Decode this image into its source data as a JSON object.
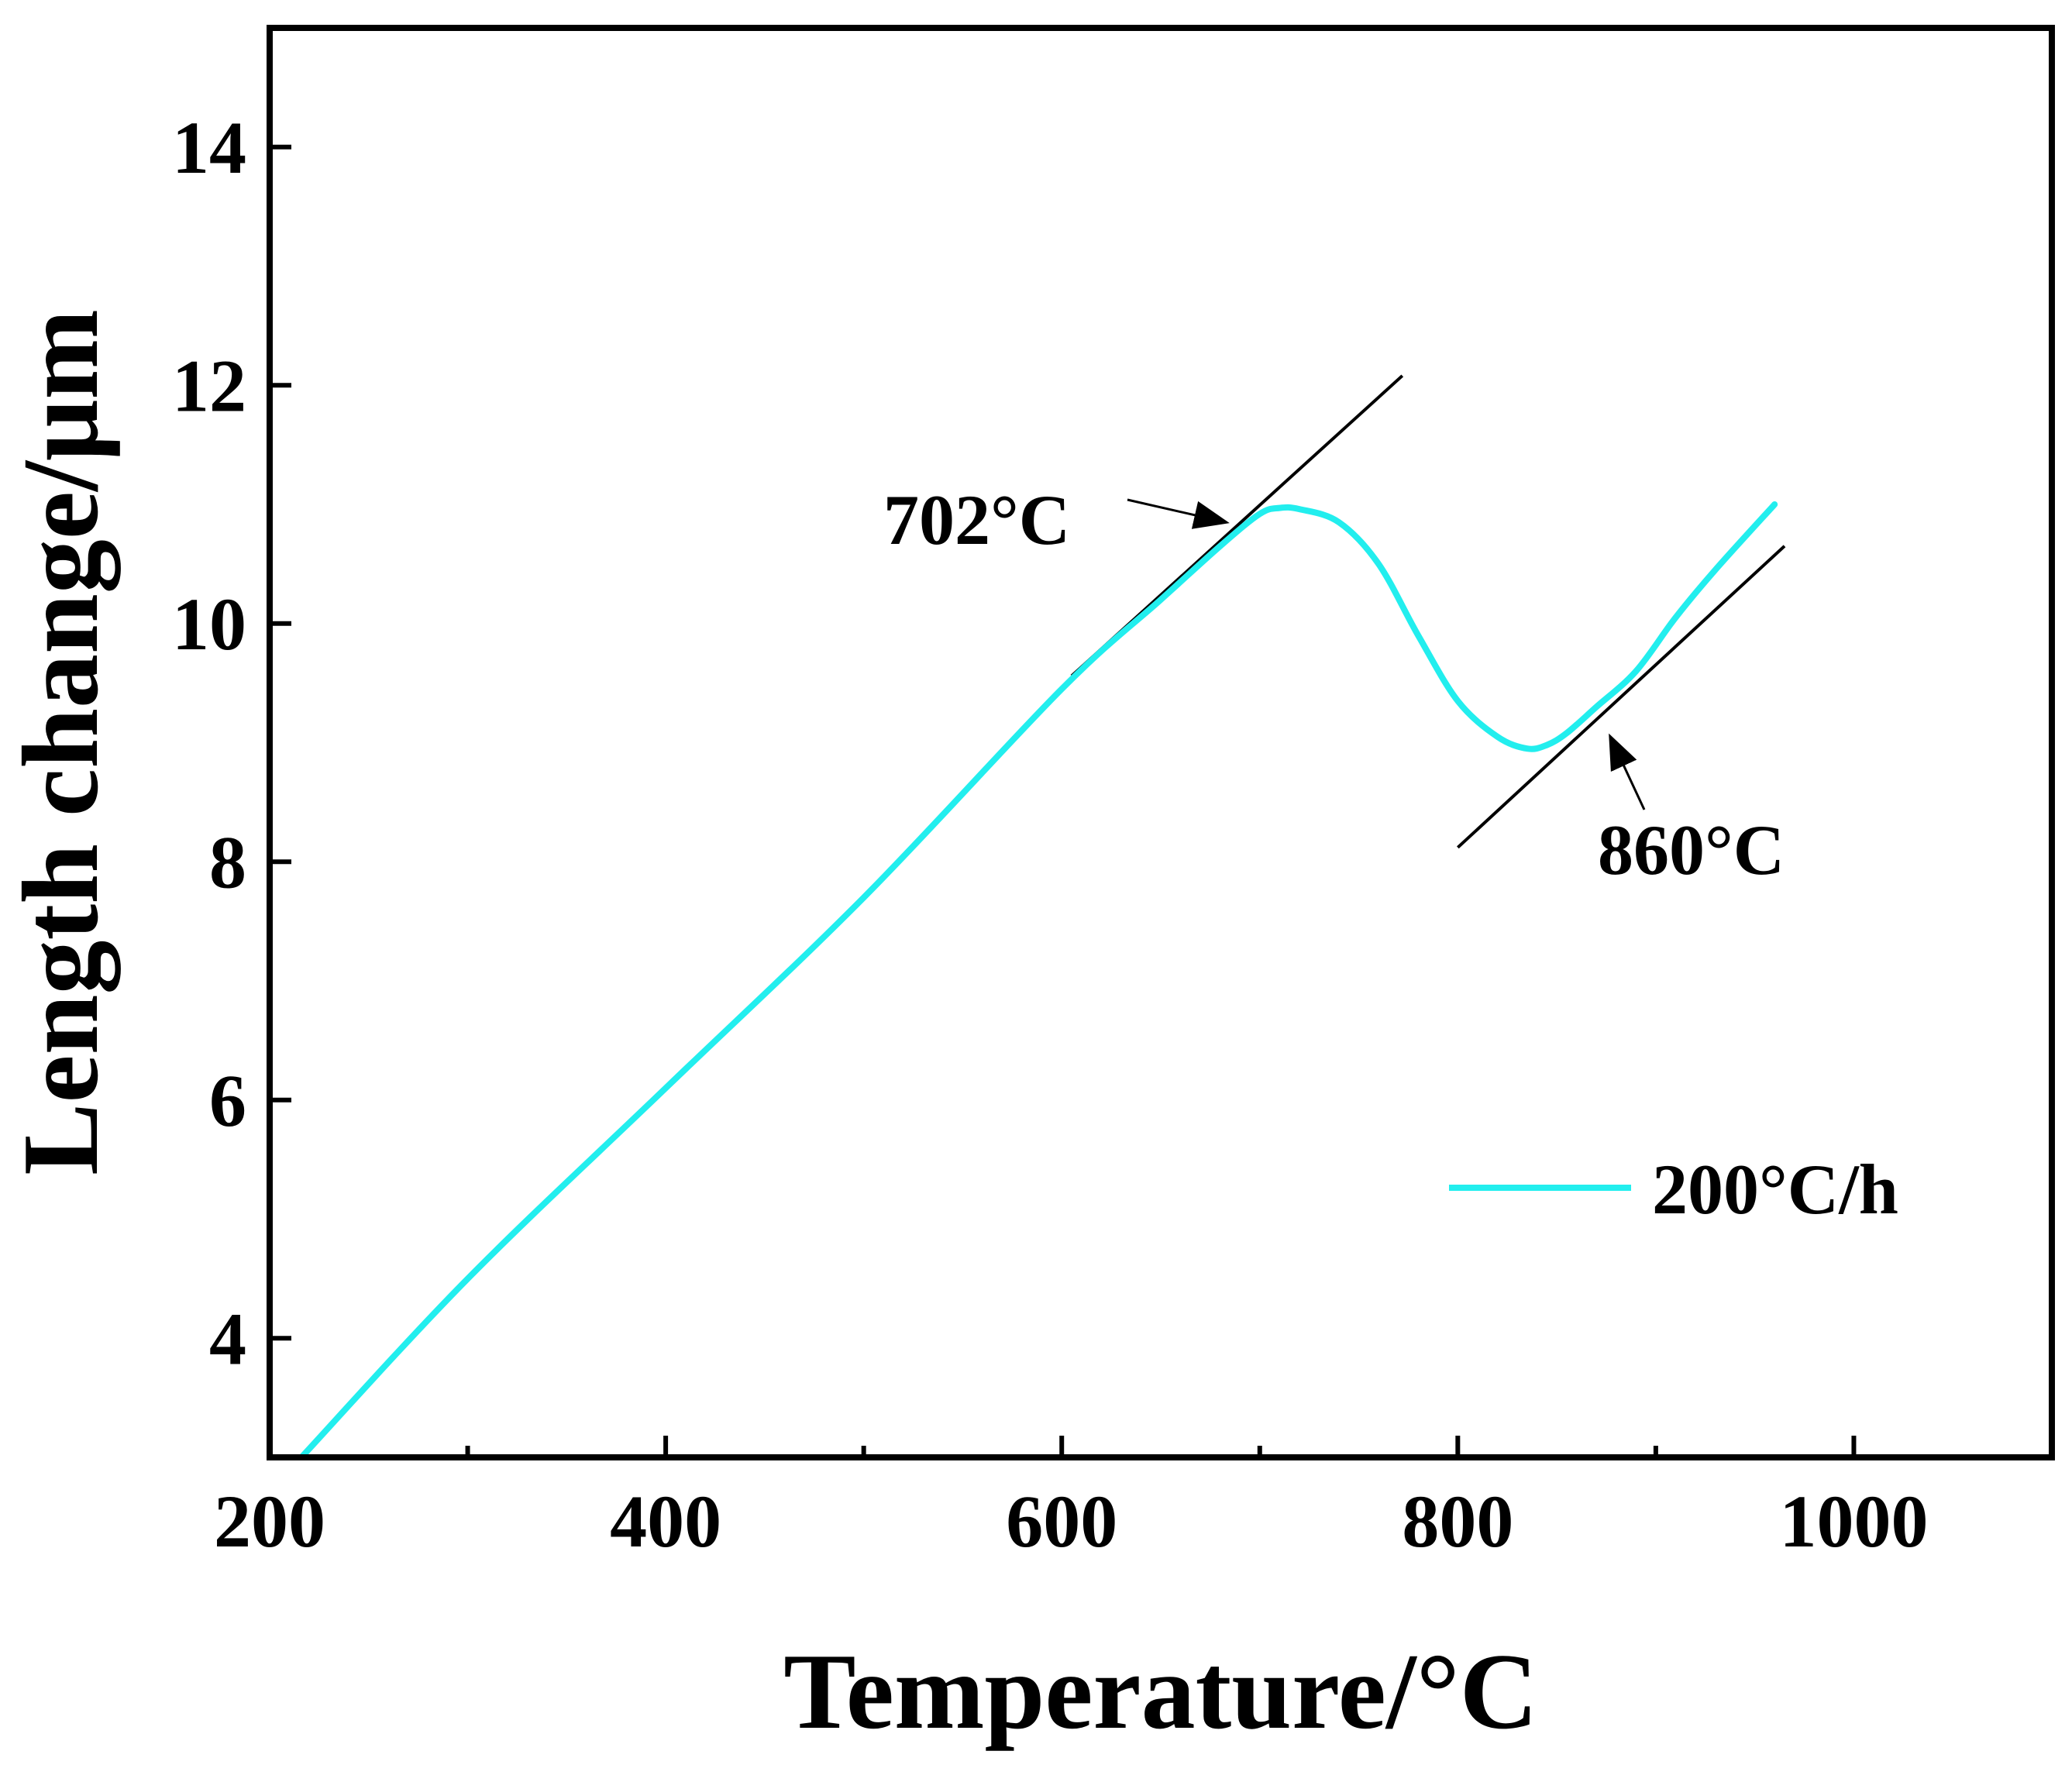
{
  "chart_data": {
    "type": "line",
    "title": "",
    "xlabel": "Temperature/°C",
    "ylabel": "Length change/μm",
    "xlim": [
      200,
      1100
    ],
    "ylim": [
      3,
      15
    ],
    "xticks": [
      200,
      400,
      600,
      800,
      1000
    ],
    "xminor": [
      300,
      500,
      700,
      900
    ],
    "yticks": [
      4,
      6,
      8,
      10,
      12,
      14
    ],
    "grid": false,
    "legend": {
      "position": "lower-right",
      "entries": [
        "200°C/h"
      ]
    },
    "series": [
      {
        "name": "200°C/h",
        "color": "#22EEEE",
        "x": [
          216,
          300,
          400,
          500,
          600,
          650,
          680,
          700,
          710,
          720,
          740,
          760,
          780,
          800,
          820,
          835,
          845,
          855,
          870,
          890,
          910,
          930,
          960
        ],
        "y": [
          3.0,
          4.5,
          6.1,
          7.7,
          9.45,
          10.2,
          10.65,
          10.92,
          10.97,
          10.96,
          10.85,
          10.5,
          9.9,
          9.35,
          9.05,
          8.95,
          8.98,
          9.08,
          9.3,
          9.6,
          10.05,
          10.45,
          11.0
        ]
      }
    ],
    "tangent_lines": [
      {
        "x": [
          605,
          772
        ],
        "y": [
          9.56,
          12.08
        ]
      },
      {
        "x": [
          800,
          965
        ],
        "y": [
          8.12,
          10.65
        ]
      }
    ],
    "annotations": [
      {
        "text": "702°C",
        "x": 702,
        "arrow_to": [
          683,
          10.85
        ]
      },
      {
        "text": "860°C",
        "x": 860,
        "arrow_to": [
          877,
          9.05
        ]
      }
    ]
  }
}
